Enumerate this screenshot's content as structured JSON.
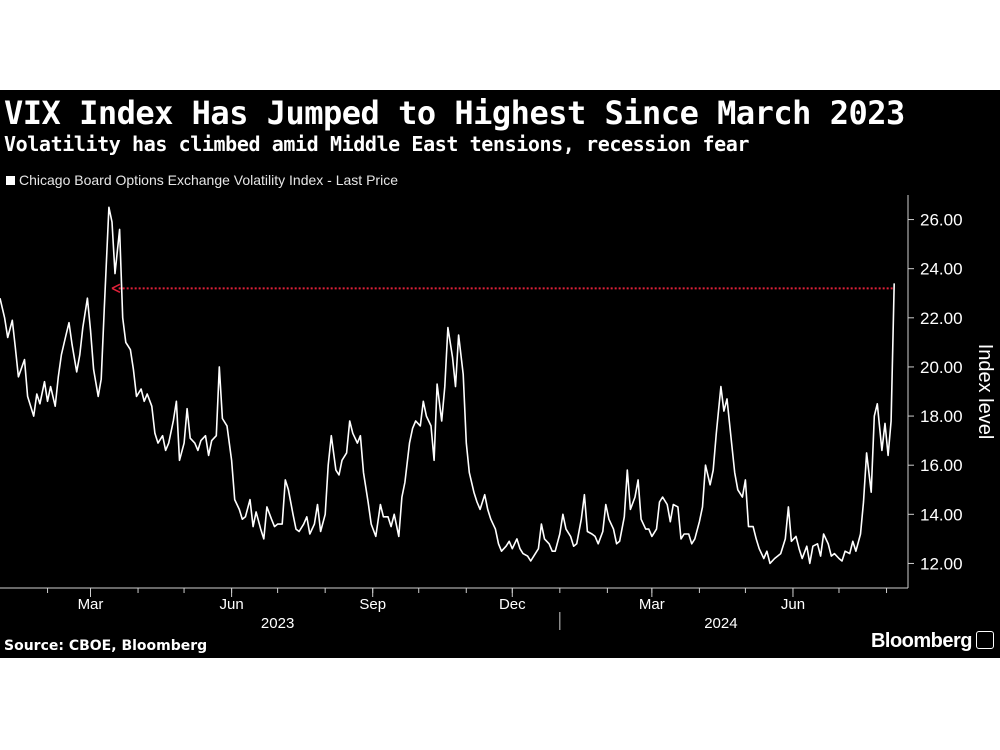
{
  "title": "VIX Index Has Jumped to Highest Since March 2023",
  "subtitle": "Volatility has climbed amid Middle East tensions, recession fear",
  "source": "Source: CBOE, Bloomberg",
  "brand": "Bloomberg",
  "colors": {
    "background": "#000000",
    "line": "#ffffff",
    "reference_arrow": "#e0213a"
  },
  "chart_data": {
    "type": "line",
    "title": "VIX Index Has Jumped to Highest Since March 2023",
    "subtitle": "Volatility has climbed amid Middle East tensions, recession fear",
    "xlabel": "",
    "ylabel": "Index level",
    "ylim": [
      11.0,
      27.0
    ],
    "yticks": [
      12,
      14,
      16,
      18,
      20,
      22,
      24,
      26
    ],
    "ytick_labels": [
      "12.00",
      "14.00",
      "16.00",
      "18.00",
      "20.00",
      "22.00",
      "24.00",
      "26.00"
    ],
    "xlim": [
      "2023-01-01",
      "2024-08-15"
    ],
    "xticks": [
      {
        "date": "2023-03-01",
        "label": "Mar"
      },
      {
        "date": "2023-06-01",
        "label": "Jun"
      },
      {
        "date": "2023-09-01",
        "label": "Sep"
      },
      {
        "date": "2023-12-01",
        "label": "Dec"
      },
      {
        "date": "2024-03-01",
        "label": "Mar"
      },
      {
        "date": "2024-06-01",
        "label": "Jun"
      }
    ],
    "year_labels": [
      {
        "label": "2023",
        "center": "2023-07-01"
      },
      {
        "label": "2024",
        "center": "2024-04-15"
      }
    ],
    "year_separator": "2024-01-01",
    "grid": false,
    "legend": "top-left",
    "annotations": [
      {
        "type": "horizontal-arrow",
        "y": 23.2,
        "from": "2024-08-05",
        "to": "2023-03-15",
        "style": "dotted",
        "color": "#e0213a"
      }
    ],
    "series": [
      {
        "name": "Chicago Board Options Exchange Volatility Index - Last Price",
        "points": [
          [
            "2023-01-01",
            22.8
          ],
          [
            "2023-01-04",
            22.0
          ],
          [
            "2023-01-06",
            21.2
          ],
          [
            "2023-01-09",
            21.9
          ],
          [
            "2023-01-11",
            20.8
          ],
          [
            "2023-01-13",
            19.6
          ],
          [
            "2023-01-17",
            20.3
          ],
          [
            "2023-01-19",
            18.8
          ],
          [
            "2023-01-23",
            18.0
          ],
          [
            "2023-01-25",
            18.9
          ],
          [
            "2023-01-27",
            18.5
          ],
          [
            "2023-01-30",
            19.4
          ],
          [
            "2023-02-01",
            18.6
          ],
          [
            "2023-02-03",
            19.2
          ],
          [
            "2023-02-06",
            18.4
          ],
          [
            "2023-02-08",
            19.6
          ],
          [
            "2023-02-10",
            20.5
          ],
          [
            "2023-02-13",
            21.3
          ],
          [
            "2023-02-15",
            21.8
          ],
          [
            "2023-02-17",
            20.9
          ],
          [
            "2023-02-20",
            19.8
          ],
          [
            "2023-02-22",
            20.5
          ],
          [
            "2023-02-24",
            21.6
          ],
          [
            "2023-02-27",
            22.8
          ],
          [
            "2023-03-01",
            21.5
          ],
          [
            "2023-03-03",
            19.9
          ],
          [
            "2023-03-06",
            18.8
          ],
          [
            "2023-03-08",
            19.5
          ],
          [
            "2023-03-10",
            22.4
          ],
          [
            "2023-03-13",
            26.5
          ],
          [
            "2023-03-15",
            25.9
          ],
          [
            "2023-03-17",
            23.8
          ],
          [
            "2023-03-20",
            25.6
          ],
          [
            "2023-03-22",
            22.0
          ],
          [
            "2023-03-24",
            21.0
          ],
          [
            "2023-03-27",
            20.7
          ],
          [
            "2023-03-29",
            19.9
          ],
          [
            "2023-03-31",
            18.8
          ],
          [
            "2023-04-03",
            19.1
          ],
          [
            "2023-04-05",
            18.6
          ],
          [
            "2023-04-07",
            18.9
          ],
          [
            "2023-04-10",
            18.4
          ],
          [
            "2023-04-12",
            17.3
          ],
          [
            "2023-04-14",
            16.9
          ],
          [
            "2023-04-17",
            17.2
          ],
          [
            "2023-04-19",
            16.6
          ],
          [
            "2023-04-21",
            16.9
          ],
          [
            "2023-04-24",
            17.8
          ],
          [
            "2023-04-26",
            18.6
          ],
          [
            "2023-04-28",
            16.2
          ],
          [
            "2023-05-01",
            16.9
          ],
          [
            "2023-05-03",
            18.3
          ],
          [
            "2023-05-05",
            17.1
          ],
          [
            "2023-05-08",
            16.9
          ],
          [
            "2023-05-10",
            16.6
          ],
          [
            "2023-05-12",
            17.0
          ],
          [
            "2023-05-15",
            17.2
          ],
          [
            "2023-05-17",
            16.4
          ],
          [
            "2023-05-19",
            17.0
          ],
          [
            "2023-05-22",
            17.2
          ],
          [
            "2023-05-24",
            20.0
          ],
          [
            "2023-05-26",
            17.9
          ],
          [
            "2023-05-29",
            17.6
          ],
          [
            "2023-06-01",
            16.2
          ],
          [
            "2023-06-03",
            14.6
          ],
          [
            "2023-06-06",
            14.2
          ],
          [
            "2023-06-08",
            13.8
          ],
          [
            "2023-06-10",
            13.9
          ],
          [
            "2023-06-13",
            14.6
          ],
          [
            "2023-06-15",
            13.5
          ],
          [
            "2023-06-17",
            14.1
          ],
          [
            "2023-06-20",
            13.4
          ],
          [
            "2023-06-22",
            13.0
          ],
          [
            "2023-06-24",
            14.3
          ],
          [
            "2023-06-27",
            13.8
          ],
          [
            "2023-06-29",
            13.5
          ],
          [
            "2023-07-01",
            13.6
          ],
          [
            "2023-07-04",
            13.6
          ],
          [
            "2023-07-06",
            15.4
          ],
          [
            "2023-07-08",
            15.0
          ],
          [
            "2023-07-11",
            14.0
          ],
          [
            "2023-07-13",
            13.4
          ],
          [
            "2023-07-15",
            13.3
          ],
          [
            "2023-07-18",
            13.6
          ],
          [
            "2023-07-20",
            13.9
          ],
          [
            "2023-07-22",
            13.2
          ],
          [
            "2023-07-25",
            13.6
          ],
          [
            "2023-07-27",
            14.4
          ],
          [
            "2023-07-29",
            13.3
          ],
          [
            "2023-08-01",
            14.0
          ],
          [
            "2023-08-03",
            16.0
          ],
          [
            "2023-08-05",
            17.2
          ],
          [
            "2023-08-08",
            15.8
          ],
          [
            "2023-08-10",
            15.6
          ],
          [
            "2023-08-12",
            16.2
          ],
          [
            "2023-08-15",
            16.5
          ],
          [
            "2023-08-17",
            17.8
          ],
          [
            "2023-08-19",
            17.3
          ],
          [
            "2023-08-22",
            16.9
          ],
          [
            "2023-08-24",
            17.2
          ],
          [
            "2023-08-26",
            15.7
          ],
          [
            "2023-08-29",
            14.5
          ],
          [
            "2023-08-31",
            13.6
          ],
          [
            "2023-09-03",
            13.1
          ],
          [
            "2023-09-06",
            14.4
          ],
          [
            "2023-09-08",
            13.9
          ],
          [
            "2023-09-11",
            13.9
          ],
          [
            "2023-09-13",
            13.5
          ],
          [
            "2023-09-15",
            14.0
          ],
          [
            "2023-09-18",
            13.1
          ],
          [
            "2023-09-20",
            14.7
          ],
          [
            "2023-09-22",
            15.3
          ],
          [
            "2023-09-25",
            16.9
          ],
          [
            "2023-09-27",
            17.5
          ],
          [
            "2023-09-29",
            17.8
          ],
          [
            "2023-10-02",
            17.6
          ],
          [
            "2023-10-04",
            18.6
          ],
          [
            "2023-10-06",
            18.0
          ],
          [
            "2023-10-09",
            17.6
          ],
          [
            "2023-10-11",
            16.2
          ],
          [
            "2023-10-13",
            19.3
          ],
          [
            "2023-10-16",
            17.8
          ],
          [
            "2023-10-18",
            19.2
          ],
          [
            "2023-10-20",
            21.6
          ],
          [
            "2023-10-23",
            20.4
          ],
          [
            "2023-10-25",
            19.2
          ],
          [
            "2023-10-27",
            21.3
          ],
          [
            "2023-10-30",
            19.7
          ],
          [
            "2023-11-01",
            16.9
          ],
          [
            "2023-11-03",
            15.7
          ],
          [
            "2023-11-06",
            14.9
          ],
          [
            "2023-11-08",
            14.5
          ],
          [
            "2023-11-10",
            14.2
          ],
          [
            "2023-11-13",
            14.8
          ],
          [
            "2023-11-15",
            14.2
          ],
          [
            "2023-11-17",
            13.8
          ],
          [
            "2023-11-20",
            13.4
          ],
          [
            "2023-11-22",
            12.8
          ],
          [
            "2023-11-24",
            12.5
          ],
          [
            "2023-11-27",
            12.7
          ],
          [
            "2023-11-29",
            12.9
          ],
          [
            "2023-12-01",
            12.6
          ],
          [
            "2023-12-04",
            13.0
          ],
          [
            "2023-12-06",
            12.6
          ],
          [
            "2023-12-08",
            12.4
          ],
          [
            "2023-12-11",
            12.3
          ],
          [
            "2023-12-13",
            12.1
          ],
          [
            "2023-12-15",
            12.3
          ],
          [
            "2023-12-18",
            12.6
          ],
          [
            "2023-12-20",
            13.6
          ],
          [
            "2023-12-22",
            13.0
          ],
          [
            "2023-12-25",
            12.8
          ],
          [
            "2023-12-27",
            12.5
          ],
          [
            "2023-12-29",
            12.5
          ],
          [
            "2024-01-01",
            13.2
          ],
          [
            "2024-01-03",
            14.0
          ],
          [
            "2024-01-05",
            13.4
          ],
          [
            "2024-01-08",
            13.1
          ],
          [
            "2024-01-10",
            12.7
          ],
          [
            "2024-01-12",
            12.8
          ],
          [
            "2024-01-15",
            13.8
          ],
          [
            "2024-01-17",
            14.8
          ],
          [
            "2024-01-19",
            13.3
          ],
          [
            "2024-01-22",
            13.2
          ],
          [
            "2024-01-24",
            13.1
          ],
          [
            "2024-01-26",
            12.8
          ],
          [
            "2024-01-29",
            13.3
          ],
          [
            "2024-01-31",
            14.4
          ],
          [
            "2024-02-02",
            13.8
          ],
          [
            "2024-02-05",
            13.4
          ],
          [
            "2024-02-07",
            12.8
          ],
          [
            "2024-02-09",
            12.9
          ],
          [
            "2024-02-12",
            13.9
          ],
          [
            "2024-02-14",
            15.8
          ],
          [
            "2024-02-16",
            14.2
          ],
          [
            "2024-02-19",
            14.7
          ],
          [
            "2024-02-21",
            15.4
          ],
          [
            "2024-02-23",
            13.8
          ],
          [
            "2024-02-26",
            13.4
          ],
          [
            "2024-02-28",
            13.4
          ],
          [
            "2024-03-01",
            13.1
          ],
          [
            "2024-03-04",
            13.4
          ],
          [
            "2024-03-06",
            14.5
          ],
          [
            "2024-03-08",
            14.7
          ],
          [
            "2024-03-11",
            14.4
          ],
          [
            "2024-03-13",
            13.7
          ],
          [
            "2024-03-15",
            14.4
          ],
          [
            "2024-03-18",
            14.3
          ],
          [
            "2024-03-20",
            13.0
          ],
          [
            "2024-03-22",
            13.2
          ],
          [
            "2024-03-25",
            13.2
          ],
          [
            "2024-03-27",
            12.8
          ],
          [
            "2024-03-29",
            13.0
          ],
          [
            "2024-04-01",
            13.7
          ],
          [
            "2024-04-03",
            14.3
          ],
          [
            "2024-04-05",
            16.0
          ],
          [
            "2024-04-08",
            15.2
          ],
          [
            "2024-04-10",
            15.8
          ],
          [
            "2024-04-12",
            17.3
          ],
          [
            "2024-04-15",
            19.2
          ],
          [
            "2024-04-17",
            18.2
          ],
          [
            "2024-04-19",
            18.7
          ],
          [
            "2024-04-22",
            16.9
          ],
          [
            "2024-04-24",
            15.7
          ],
          [
            "2024-04-26",
            15.0
          ],
          [
            "2024-04-29",
            14.7
          ],
          [
            "2024-05-01",
            15.4
          ],
          [
            "2024-05-03",
            13.5
          ],
          [
            "2024-05-06",
            13.5
          ],
          [
            "2024-05-08",
            13.0
          ],
          [
            "2024-05-10",
            12.6
          ],
          [
            "2024-05-13",
            12.2
          ],
          [
            "2024-05-15",
            12.5
          ],
          [
            "2024-05-17",
            12.0
          ],
          [
            "2024-05-20",
            12.2
          ],
          [
            "2024-05-22",
            12.3
          ],
          [
            "2024-05-24",
            12.4
          ],
          [
            "2024-05-27",
            13.0
          ],
          [
            "2024-05-29",
            14.3
          ],
          [
            "2024-05-31",
            12.9
          ],
          [
            "2024-06-03",
            13.1
          ],
          [
            "2024-06-05",
            12.6
          ],
          [
            "2024-06-07",
            12.2
          ],
          [
            "2024-06-10",
            12.7
          ],
          [
            "2024-06-12",
            12.0
          ],
          [
            "2024-06-14",
            12.7
          ],
          [
            "2024-06-17",
            12.8
          ],
          [
            "2024-06-19",
            12.3
          ],
          [
            "2024-06-21",
            13.2
          ],
          [
            "2024-06-24",
            12.8
          ],
          [
            "2024-06-26",
            12.3
          ],
          [
            "2024-06-28",
            12.4
          ],
          [
            "2024-07-01",
            12.2
          ],
          [
            "2024-07-03",
            12.1
          ],
          [
            "2024-07-05",
            12.5
          ],
          [
            "2024-07-08",
            12.4
          ],
          [
            "2024-07-10",
            12.9
          ],
          [
            "2024-07-12",
            12.5
          ],
          [
            "2024-07-15",
            13.2
          ],
          [
            "2024-07-17",
            14.5
          ],
          [
            "2024-07-19",
            16.5
          ],
          [
            "2024-07-22",
            14.9
          ],
          [
            "2024-07-24",
            18.0
          ],
          [
            "2024-07-26",
            18.5
          ],
          [
            "2024-07-29",
            16.6
          ],
          [
            "2024-07-31",
            17.7
          ],
          [
            "2024-08-02",
            16.4
          ],
          [
            "2024-08-04",
            17.8
          ],
          [
            "2024-08-06",
            23.4
          ]
        ]
      }
    ]
  }
}
